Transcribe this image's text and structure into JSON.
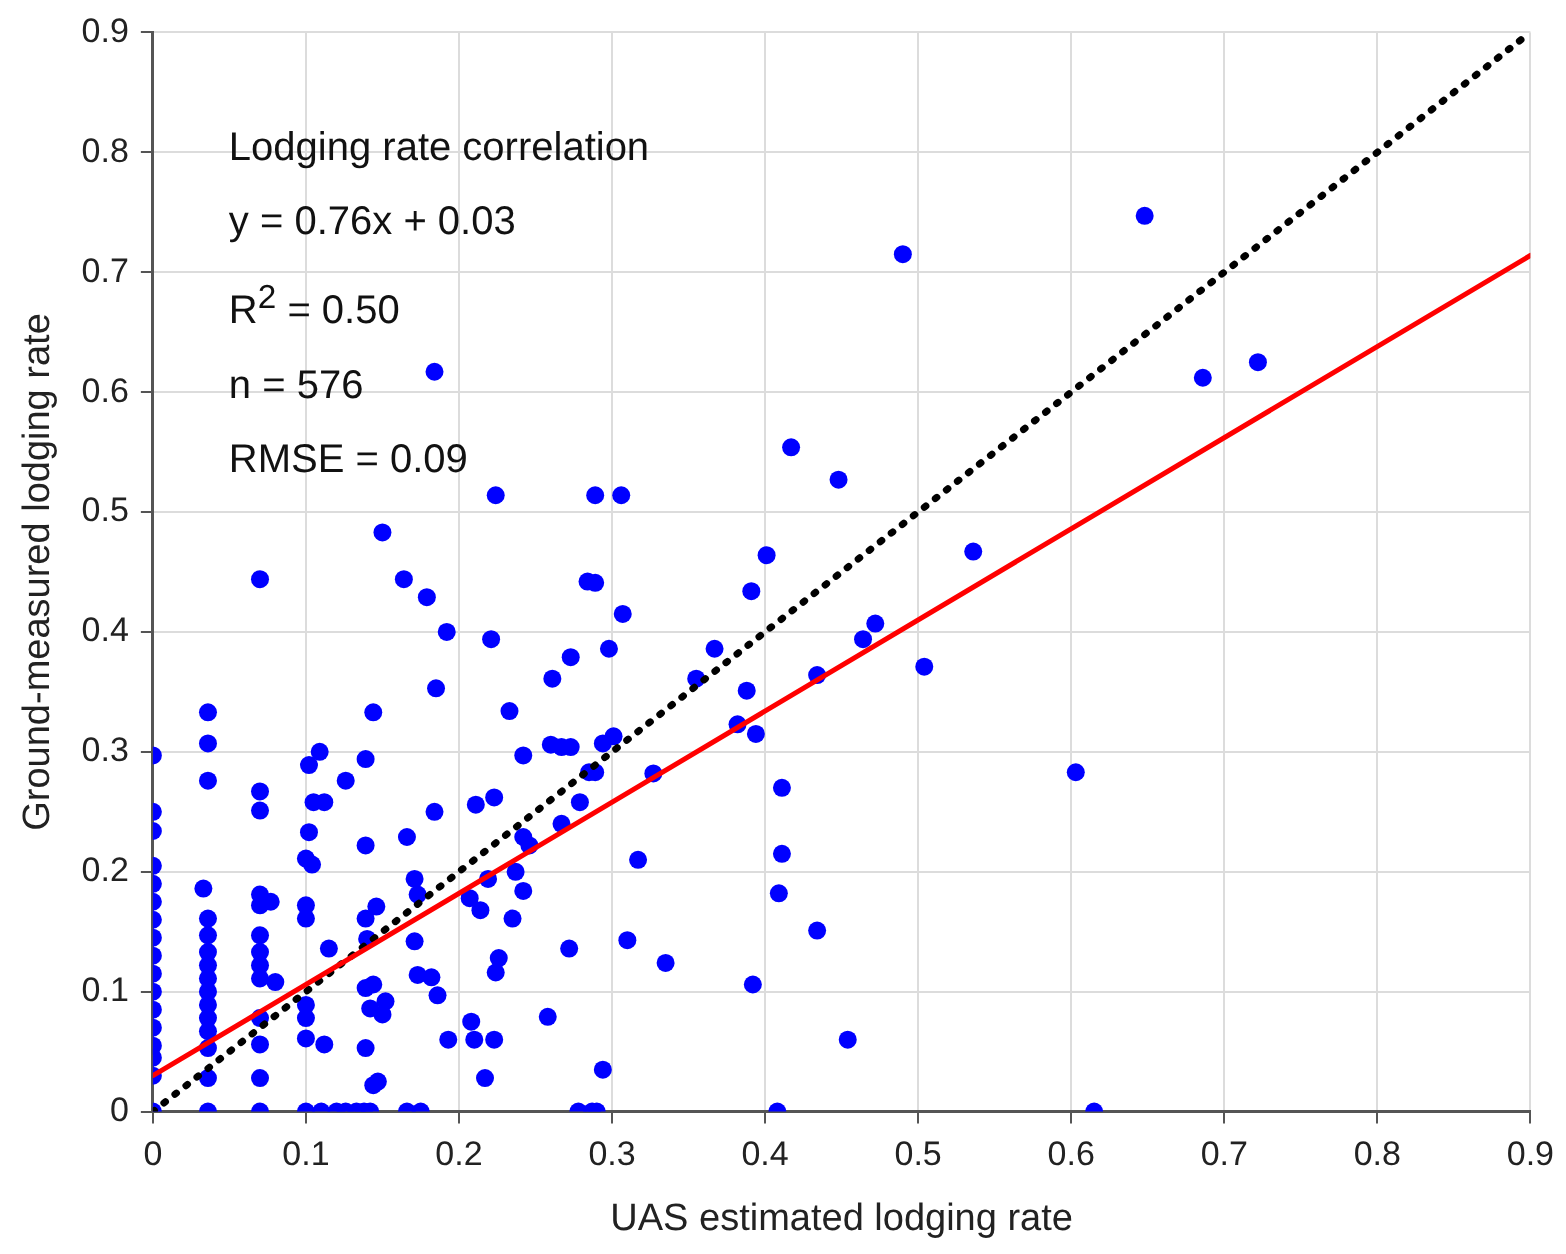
{
  "chart_data": {
    "type": "scatter",
    "xlabel": "UAS estimated lodging rate",
    "ylabel": "Ground-measured lodging rate",
    "annotations": [
      "Lodging rate correlation",
      "y = 0.76x + 0.03",
      "R$^{2}$ = 0.50",
      "n = 576",
      "RMSE = 0.09"
    ],
    "xlim": [
      0,
      0.9
    ],
    "ylim": [
      0,
      0.9
    ],
    "xticks": [
      0,
      0.1,
      0.2,
      0.3,
      0.4,
      0.5,
      0.6,
      0.7,
      0.8,
      0.9
    ],
    "yticks": [
      0,
      0.1,
      0.2,
      0.3,
      0.4,
      0.5,
      0.6,
      0.7,
      0.8,
      0.9
    ],
    "grid": true,
    "legend": false,
    "series": [
      {
        "type": "scatter",
        "color": "#0000ff",
        "marker": "circle",
        "x": [
          0,
          0,
          0,
          0,
          0,
          0,
          0,
          0,
          0,
          0,
          0,
          0,
          0,
          0,
          0,
          0,
          0,
          0.036,
          0.036,
          0.036,
          0.033,
          0.036,
          0.036,
          0.036,
          0.036,
          0.036,
          0.036,
          0.036,
          0.036,
          0.036,
          0.036,
          0.036,
          0.036,
          0.07,
          0.07,
          0.07,
          0.07,
          0.07,
          0.07,
          0.07,
          0.07,
          0.07,
          0.07,
          0.07,
          0.07,
          0.07,
          0.077,
          0.08,
          0.109,
          0.102,
          0.105,
          0.112,
          0.102,
          0.1,
          0.104,
          0.1,
          0.1,
          0.1,
          0.1,
          0.1,
          0.112,
          0.1,
          0.11,
          0.12,
          0.115,
          0.126,
          0.126,
          0.139,
          0.139,
          0.146,
          0.139,
          0.14,
          0.139,
          0.144,
          0.142,
          0.152,
          0.15,
          0.139,
          0.144,
          0.147,
          0.133,
          0.138,
          0.142,
          0.144,
          0.15,
          0.164,
          0.179,
          0.192,
          0.185,
          0.221,
          0.233,
          0.242,
          0.184,
          0.166,
          0.171,
          0.173,
          0.171,
          0.173,
          0.182,
          0.186,
          0.193,
          0.166,
          0.175,
          0.184,
          0.224,
          0.211,
          0.223,
          0.219,
          0.207,
          0.214,
          0.226,
          0.224,
          0.208,
          0.21,
          0.223,
          0.217,
          0.242,
          0.246,
          0.237,
          0.242,
          0.235,
          0.258,
          0.272,
          0.261,
          0.273,
          0.284,
          0.26,
          0.267,
          0.273,
          0.279,
          0.267,
          0.285,
          0.278,
          0.287,
          0.289,
          0.306,
          0.289,
          0.307,
          0.298,
          0.355,
          0.367,
          0.401,
          0.391,
          0.388,
          0.382,
          0.394,
          0.434,
          0.464,
          0.472,
          0.504,
          0.536,
          0.294,
          0.301,
          0.289,
          0.327,
          0.411,
          0.317,
          0.411,
          0.409,
          0.31,
          0.335,
          0.434,
          0.392,
          0.454,
          0.294,
          0.29,
          0.408,
          0.417,
          0.448,
          0.49,
          0.648,
          0.686,
          0.722,
          0.603,
          0.615
        ],
        "values": [
          0.297,
          0.25,
          0.234,
          0.205,
          0.19,
          0.175,
          0.16,
          0.145,
          0.13,
          0.115,
          0.1,
          0.085,
          0.07,
          0.055,
          0.045,
          0.03,
          0,
          0.333,
          0.307,
          0.276,
          0.186,
          0.161,
          0.147,
          0.133,
          0.122,
          0.111,
          0.1,
          0.089,
          0.078,
          0.067,
          0.053,
          0.028,
          0,
          0.444,
          0.267,
          0.251,
          0.181,
          0.172,
          0.147,
          0.133,
          0.122,
          0.111,
          0.078,
          0.056,
          0.028,
          0,
          0.175,
          0.108,
          0.3,
          0.289,
          0.258,
          0.258,
          0.233,
          0.211,
          0.206,
          0.172,
          0.161,
          0.089,
          0.078,
          0.061,
          0.056,
          0,
          0,
          0,
          0.136,
          0.276,
          0,
          0.294,
          0.222,
          0.171,
          0.161,
          0.144,
          0.103,
          0.106,
          0.086,
          0.092,
          0.081,
          0.053,
          0.022,
          0.025,
          0,
          0,
          0,
          0.333,
          0.483,
          0.444,
          0.429,
          0.4,
          0.353,
          0.394,
          0.334,
          0.297,
          0.25,
          0.229,
          0.194,
          0.181,
          0.142,
          0.114,
          0.112,
          0.097,
          0.06,
          0,
          0,
          0.617,
          0.514,
          0.256,
          0.262,
          0.194,
          0.178,
          0.168,
          0.128,
          0.116,
          0.075,
          0.06,
          0.06,
          0.028,
          0.229,
          0.222,
          0.2,
          0.184,
          0.161,
          0.079,
          0.136,
          0.361,
          0.379,
          0.442,
          0.306,
          0.304,
          0.304,
          0.258,
          0.24,
          0.283,
          0,
          0,
          0.514,
          0.514,
          0.441,
          0.415,
          0.386,
          0.361,
          0.386,
          0.464,
          0.434,
          0.351,
          0.323,
          0.315,
          0.364,
          0.394,
          0.407,
          0.371,
          0.467,
          0.307,
          0.313,
          0.283,
          0.282,
          0.27,
          0.21,
          0.215,
          0.182,
          0.143,
          0.124,
          0.151,
          0.106,
          0.06,
          0.035,
          0,
          0,
          0.554,
          0.527,
          0.715,
          0.747,
          0.612,
          0.625,
          0.283,
          0
        ]
      },
      {
        "type": "line",
        "color": "#ff0000",
        "line_style": "solid",
        "marker": "none",
        "x": [
          0,
          0.9
        ],
        "values": [
          0.03,
          0.714
        ]
      },
      {
        "type": "line",
        "color": "#000000",
        "line_style": "dotted",
        "marker": "none",
        "x": [
          0,
          0.9
        ],
        "values": [
          0,
          0.9
        ]
      }
    ]
  }
}
